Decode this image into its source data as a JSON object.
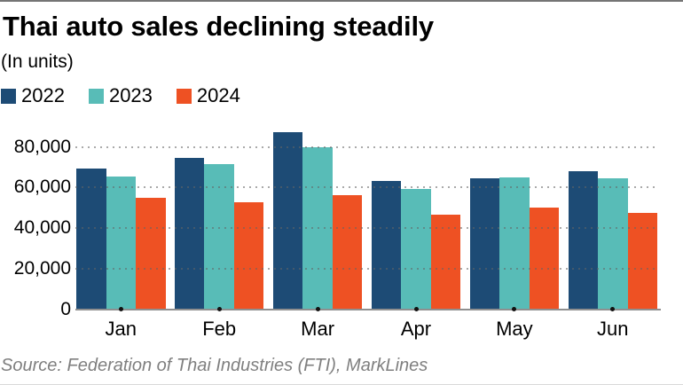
{
  "chart_data": {
    "type": "bar",
    "title": "Thai auto sales declining steadily",
    "subtitle": "(In units)",
    "categories": [
      "Jan",
      "Feb",
      "Mar",
      "Apr",
      "May",
      "Jun"
    ],
    "series": [
      {
        "name": "2022",
        "color": "#1d4b75",
        "values": [
          69500,
          74500,
          87200,
          63400,
          64700,
          68000
        ]
      },
      {
        "name": "2023",
        "color": "#58bcb7",
        "values": [
          65600,
          71600,
          79900,
          59500,
          65100,
          64400
        ]
      },
      {
        "name": "2024",
        "color": "#ee5123",
        "values": [
          54800,
          52800,
          56100,
          46700,
          49900,
          47700
        ]
      }
    ],
    "xlabel": "",
    "ylabel": "",
    "ylim": [
      0,
      91000
    ],
    "yticks": [
      0,
      20000,
      40000,
      60000,
      80000
    ],
    "ytick_labels": [
      "0",
      "20,000",
      "40,000",
      "60,000",
      "80,000"
    ],
    "grid": "dotted-horizontal",
    "grid_color": "#8c8c8c",
    "legend_position": "top-left",
    "axis_color": "#8f8f8f",
    "tick_marker": "black-dot"
  },
  "source": "Source: Federation of Thai Industries (FTI), MarkLines",
  "colors": {
    "top_rule": "#757575",
    "bottom_rule": "#d9d9d9",
    "source_text": "#7f7f7f"
  }
}
